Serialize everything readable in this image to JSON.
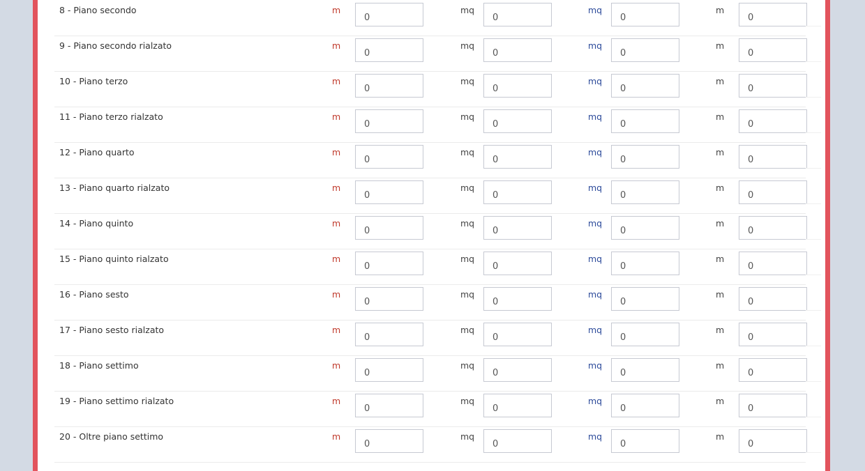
{
  "colors": {
    "accent_border": "#e2545d",
    "background": "#d3dae4",
    "unit_m_first": "#c0392b",
    "unit_mq_first": "#444444",
    "unit_mq_second": "#2c4a9a",
    "unit_m_last": "#444444"
  },
  "units": [
    "m",
    "mq",
    "mq",
    "m"
  ],
  "rows": [
    {
      "label": "8 - Piano secondo",
      "values": [
        "0",
        "0",
        "0",
        "0"
      ]
    },
    {
      "label": "9 - Piano secondo rialzato",
      "values": [
        "0",
        "0",
        "0",
        "0"
      ]
    },
    {
      "label": "10 - Piano terzo",
      "values": [
        "0",
        "0",
        "0",
        "0"
      ]
    },
    {
      "label": "11 - Piano terzo rialzato",
      "values": [
        "0",
        "0",
        "0",
        "0"
      ]
    },
    {
      "label": "12 - Piano quarto",
      "values": [
        "0",
        "0",
        "0",
        "0"
      ]
    },
    {
      "label": "13 - Piano quarto rialzato",
      "values": [
        "0",
        "0",
        "0",
        "0"
      ]
    },
    {
      "label": "14 - Piano quinto",
      "values": [
        "0",
        "0",
        "0",
        "0"
      ]
    },
    {
      "label": "15 - Piano quinto rialzato",
      "values": [
        "0",
        "0",
        "0",
        "0"
      ]
    },
    {
      "label": "16 - Piano sesto",
      "values": [
        "0",
        "0",
        "0",
        "0"
      ]
    },
    {
      "label": "17 - Piano sesto rialzato",
      "values": [
        "0",
        "0",
        "0",
        "0"
      ]
    },
    {
      "label": "18 - Piano settimo",
      "values": [
        "0",
        "0",
        "0",
        "0"
      ]
    },
    {
      "label": "19 - Piano settimo rialzato",
      "values": [
        "0",
        "0",
        "0",
        "0"
      ]
    },
    {
      "label": "20 - Oltre piano settimo",
      "values": [
        "0",
        "0",
        "0",
        "0"
      ]
    }
  ]
}
